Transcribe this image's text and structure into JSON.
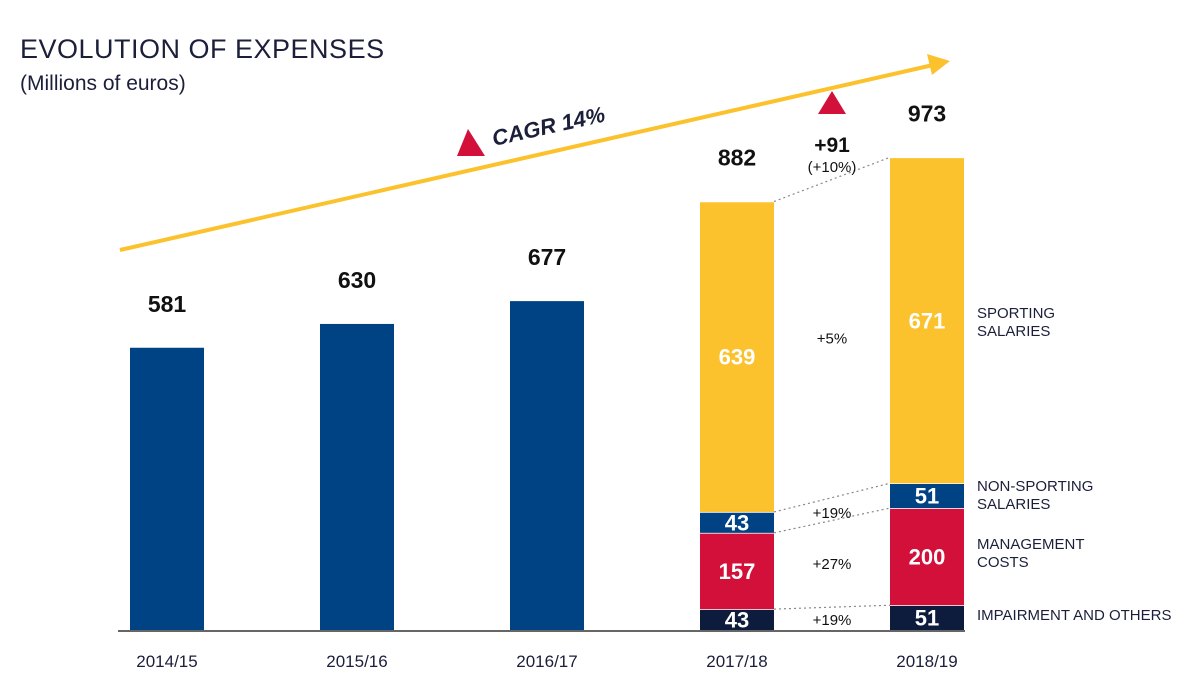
{
  "chart_data": {
    "type": "bar",
    "title": "EVOLUTION OF EXPENSES",
    "subtitle": "(Millions of euros)",
    "categories": [
      "2014/15",
      "2015/16",
      "2016/17",
      "2017/18",
      "2018/19"
    ],
    "totals": [
      581,
      630,
      677,
      882,
      973
    ],
    "series": [
      {
        "name": "IMPAIRMENT AND OTHERS",
        "values": [
          null,
          null,
          null,
          43,
          51
        ],
        "color": "#0d1b3d"
      },
      {
        "name": "MANAGEMENT COSTS",
        "values": [
          null,
          null,
          null,
          157,
          200
        ],
        "color": "#d2103a"
      },
      {
        "name": "NON-SPORTING SALARIES",
        "values": [
          null,
          null,
          null,
          43,
          51
        ],
        "color": "#004385"
      },
      {
        "name": "SPORTING SALARIES",
        "values": [
          null,
          null,
          null,
          639,
          671
        ],
        "color": "#fcc22d"
      }
    ],
    "legend_labels": [
      [
        "SPORTING",
        "SALARIES"
      ],
      [
        "NON-SPORTING",
        "SALARIES"
      ],
      [
        "MANAGEMENT",
        "COSTS"
      ],
      [
        "IMPAIRMENT AND OTHERS"
      ]
    ],
    "growth_labels": [
      "+19%",
      "+27%",
      "+19%",
      "+5%"
    ],
    "total_change": {
      "value": "+91",
      "percent": "(+10%)"
    },
    "cagr_label": "CAGR 14%",
    "solid_bar_color": "#004385",
    "arrow_color": "#fcc22d",
    "triangle_color": "#d2103a",
    "ylim": [
      0,
      1000
    ]
  }
}
